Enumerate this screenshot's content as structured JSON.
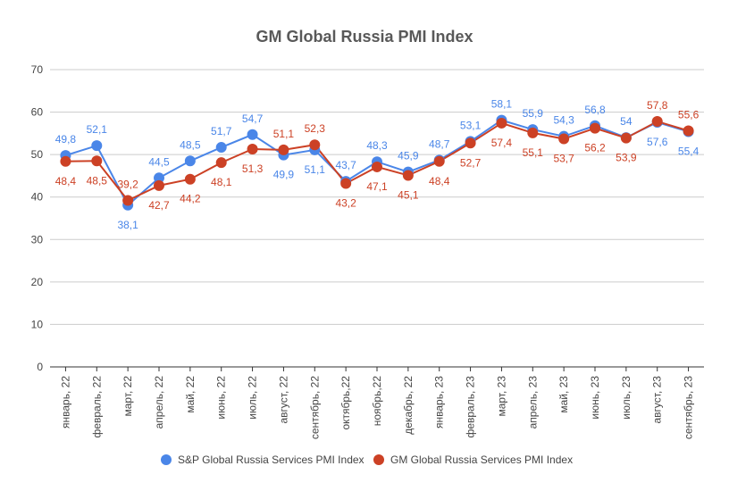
{
  "chart_data": {
    "type": "line",
    "title": "GM Global Russia PMI Index",
    "xlabel": "",
    "ylabel": "",
    "ylim": [
      0,
      70
    ],
    "yticks": [
      0,
      10,
      20,
      30,
      40,
      50,
      60,
      70
    ],
    "grid": true,
    "legend": "bottom",
    "categories": [
      "январь, 22",
      "февраль, 22",
      "март, 22",
      "апрель, 22",
      "май, 22",
      "июнь, 22",
      "июль, 22",
      "август, 22",
      "сентябрь, 22",
      "октябрь,22",
      "ноябрь,22",
      "декабрь, 22",
      "январь, 23",
      "февраль, 23",
      "март, 23",
      "апрель, 23",
      "май, 23",
      "июнь, 23",
      "июль, 23",
      "август, 23",
      "сентябрь, 23"
    ],
    "series": [
      {
        "name": "S&P Global Russia Services PMI Index",
        "color": "#4a86e8",
        "values": [
          49.8,
          52.1,
          38.1,
          44.5,
          48.5,
          51.7,
          54.7,
          49.9,
          51.1,
          43.7,
          48.3,
          45.9,
          48.7,
          53.1,
          58.1,
          55.9,
          54.3,
          56.8,
          54,
          57.6,
          55.4
        ],
        "labels": [
          "49,8",
          "52,1",
          "38,1",
          "44,5",
          "48,5",
          "51,7",
          "54,7",
          "49,9",
          "51,1",
          "43,7",
          "48,3",
          "45,9",
          "48,7",
          "53,1",
          "58,1",
          "55,9",
          "54,3",
          "56,8",
          "54",
          "57,6",
          "55,4"
        ]
      },
      {
        "name": "GM Global Russia Services PMI Index",
        "color": "#cc4125",
        "values": [
          48.4,
          48.5,
          39.2,
          42.7,
          44.2,
          48.1,
          51.3,
          51.1,
          52.3,
          43.2,
          47.1,
          45.1,
          48.4,
          52.7,
          57.4,
          55.1,
          53.7,
          56.2,
          53.9,
          57.8,
          55.6
        ],
        "labels": [
          "48,4",
          "48,5",
          "39,2",
          "42,7",
          "44,2",
          "48,1",
          "51,3",
          "51,1",
          "52,3",
          "43,2",
          "47,1",
          "45,1",
          "48,4",
          "52,7",
          "57,4",
          "55,1",
          "53,7",
          "56,2",
          "53,9",
          "57,8",
          "55,6"
        ]
      }
    ]
  }
}
